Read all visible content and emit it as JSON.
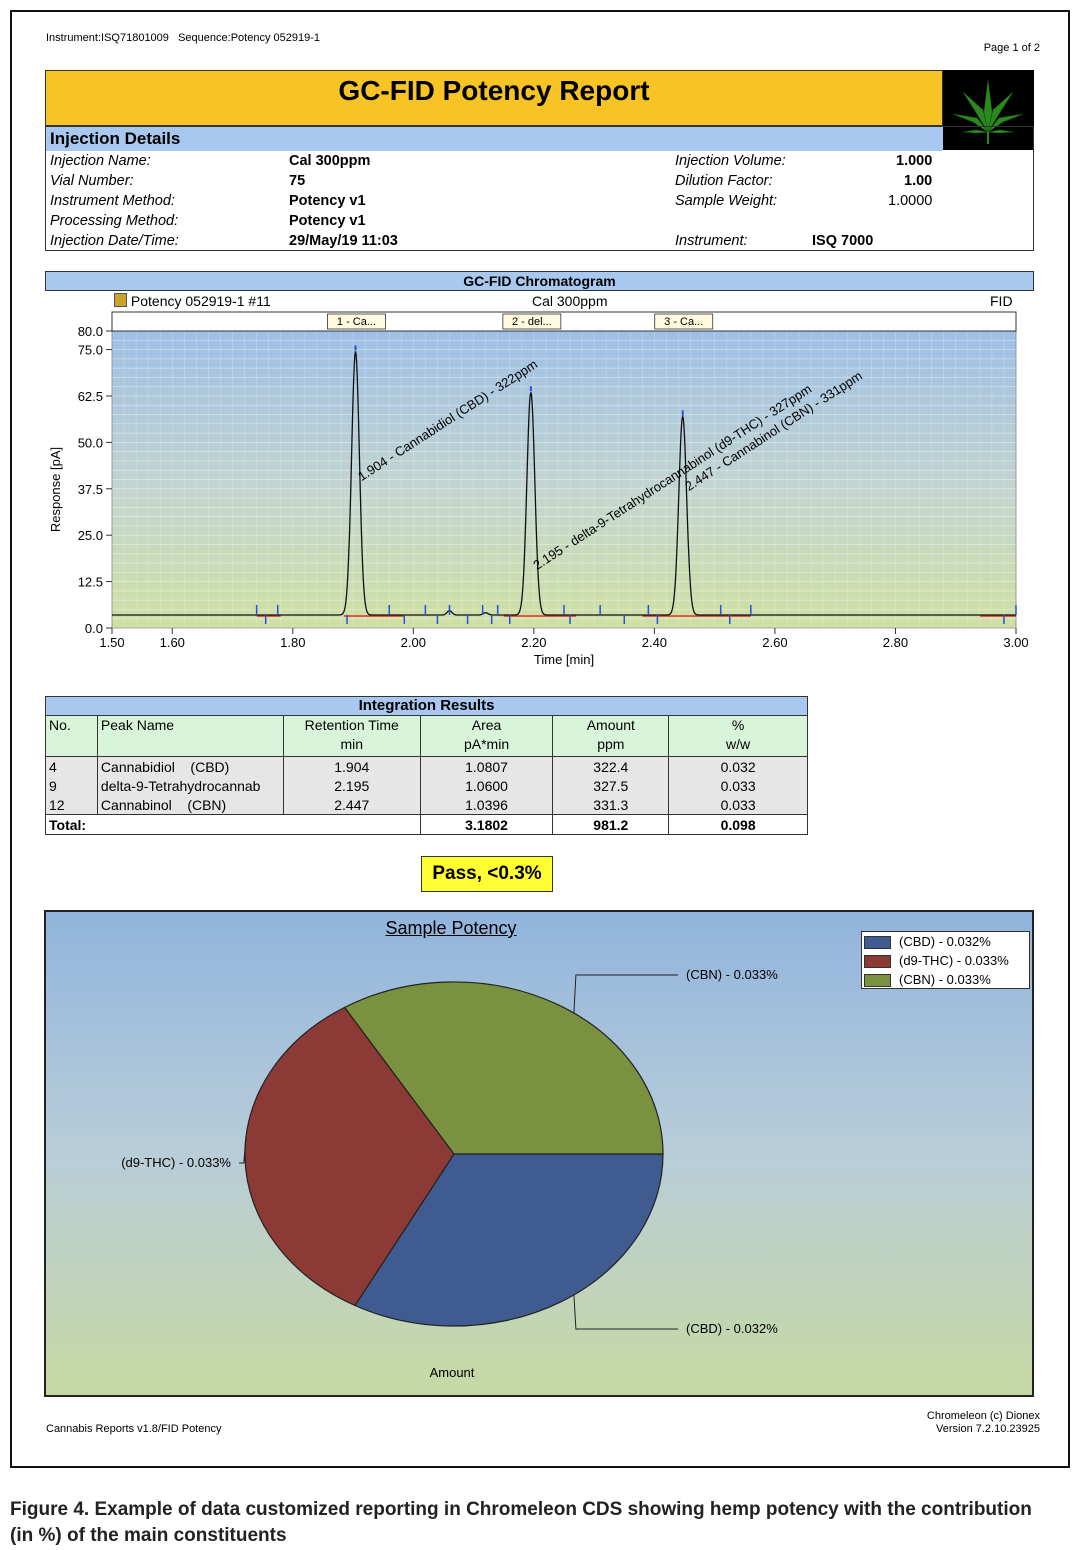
{
  "header": {
    "instrument": "Instrument:ISQ71801009",
    "sequence": "Sequence:Potency 052919-1",
    "page": "Page 1 of 2"
  },
  "title": "GC-FID Potency Report",
  "logo": "cannabis-leaf-icon",
  "injection": {
    "heading": "Injection Details",
    "left": [
      {
        "label": "Injection Name:",
        "value": "Cal 300ppm"
      },
      {
        "label": "Vial Number:",
        "value": "75"
      },
      {
        "label": "Instrument Method:",
        "value": "Potency v1"
      },
      {
        "label": "Processing Method:",
        "value": "Potency v1"
      },
      {
        "label": "Injection Date/Time:",
        "value": "29/May/19 11:03"
      }
    ],
    "right": [
      {
        "label": "Injection Volume:",
        "value": "1.000"
      },
      {
        "label": "Dilution Factor:",
        "value": "1.00"
      },
      {
        "label": "Sample Weight:",
        "value": "1.0000"
      },
      {
        "label": "Instrument:",
        "value": "ISQ 7000"
      }
    ]
  },
  "chromatogram": {
    "heading": "GC-FID Chromatogram",
    "sequence_label": "Potency 052919-1 #11",
    "injection_label": "Cal 300ppm",
    "detector": "FID"
  },
  "chart_data": [
    {
      "type": "line",
      "title": "GC-FID Chromatogram",
      "xlabel": "Time [min]",
      "ylabel": "Response [pA]",
      "xlim": [
        1.5,
        3.0
      ],
      "ylim": [
        0.0,
        80.0
      ],
      "xticks": [
        "1.50",
        "1.60",
        "1.80",
        "2.00",
        "2.20",
        "2.40",
        "2.60",
        "2.80",
        "3.00"
      ],
      "xtick_values": [
        1.5,
        1.6,
        1.8,
        2.0,
        2.2,
        2.4,
        2.6,
        2.8,
        3.0
      ],
      "yticks": [
        "0.0",
        "12.5",
        "25.0",
        "37.5",
        "50.0",
        "62.5",
        "75.0",
        "80.0"
      ],
      "ytick_values": [
        0.0,
        12.5,
        25.0,
        37.5,
        50.0,
        62.5,
        75.0,
        80.0
      ],
      "baseline": 3.5,
      "peaks": [
        {
          "rt": 1.904,
          "height": 74.5,
          "width": 0.0065,
          "label": "1.904 - Cannabidiol    (CBD) - 322ppm",
          "tag": "1 - Ca..."
        },
        {
          "rt": 2.195,
          "height": 63.5,
          "width": 0.0065,
          "label": "2.195 - delta-9-Tetrahydrocannabinol (d9-THC) - 327ppm",
          "tag": "2 - del..."
        },
        {
          "rt": 2.447,
          "height": 57.0,
          "width": 0.0065,
          "label": "2.447 - Cannabinol    (CBN) - 331ppm",
          "tag": "3 - Ca..."
        }
      ],
      "minor_marks": [
        1.74,
        1.755,
        1.775,
        1.89,
        1.96,
        1.985,
        2.02,
        2.04,
        2.06,
        2.09,
        2.115,
        2.13,
        2.14,
        2.16,
        2.25,
        2.26,
        2.31,
        2.35,
        2.39,
        2.405,
        2.51,
        2.525,
        2.56,
        2.98,
        3.0
      ]
    },
    {
      "type": "pie",
      "title": "Sample Potency",
      "xlabel": "Amount",
      "slices": [
        {
          "name": "(CBD) - 0.032%",
          "value": 322.4,
          "color": "#3f5b8f"
        },
        {
          "name": "(d9-THC) - 0.033%",
          "value": 327.5,
          "color": "#8c3a36"
        },
        {
          "name": "(CBN) - 0.033%",
          "value": 331.3,
          "color": "#7a9140"
        }
      ]
    }
  ],
  "integration": {
    "title": "Integration Results",
    "headers": [
      {
        "top": "No.",
        "bottom": ""
      },
      {
        "top": "Peak Name",
        "bottom": ""
      },
      {
        "top": "Retention Time",
        "bottom": "min"
      },
      {
        "top": "Area",
        "bottom": "pA*min"
      },
      {
        "top": "Amount",
        "bottom": "ppm"
      },
      {
        "top": "%",
        "bottom": "w/w"
      }
    ],
    "rows": [
      [
        "4",
        "Cannabidiol    (CBD)",
        "1.904",
        "1.0807",
        "322.4",
        "0.032"
      ],
      [
        "9",
        "delta-9-Tetrahydrocannab",
        "2.195",
        "1.0600",
        "327.5",
        "0.033"
      ],
      [
        "12",
        "Cannabinol    (CBN)",
        "2.447",
        "1.0396",
        "331.3",
        "0.033"
      ]
    ],
    "total": {
      "label": "Total:",
      "area": "3.1802",
      "amount": "981.2",
      "percent": "0.098"
    }
  },
  "pass_label": "Pass, <0.3%",
  "footer": {
    "left": "Cannabis Reports v1.8/FID Potency",
    "right1": "Chromeleon (c) Dionex",
    "right2": "Version 7.2.10.23925"
  },
  "caption": "Figure 4. Example of data customized reporting in Chromeleon CDS showing hemp potency with the contribution (in %) of the main constituents"
}
